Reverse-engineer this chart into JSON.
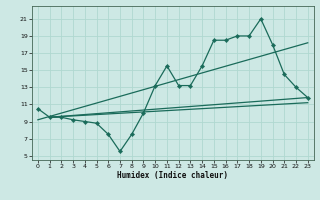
{
  "xlabel": "Humidex (Indice chaleur)",
  "bg_color": "#cde8e4",
  "grid_color": "#b0d8d0",
  "line_color": "#1a6b5a",
  "xlim": [
    -0.5,
    23.5
  ],
  "ylim": [
    4.5,
    22.5
  ],
  "yticks": [
    5,
    7,
    9,
    11,
    13,
    15,
    17,
    19,
    21
  ],
  "xticks": [
    0,
    1,
    2,
    3,
    4,
    5,
    6,
    7,
    8,
    9,
    10,
    11,
    12,
    13,
    14,
    15,
    16,
    17,
    18,
    19,
    20,
    21,
    22,
    23
  ],
  "line1_x": [
    0,
    1,
    2,
    3,
    4,
    5,
    6,
    7,
    8,
    9,
    10,
    11,
    12,
    13,
    14,
    15,
    16,
    17,
    18,
    19,
    20,
    21,
    22,
    23
  ],
  "line1_y": [
    10.5,
    9.5,
    9.5,
    9.2,
    9.0,
    8.8,
    7.5,
    5.5,
    7.5,
    10.0,
    13.2,
    15.5,
    13.2,
    13.2,
    15.5,
    18.5,
    18.5,
    19.0,
    19.0,
    21.0,
    18.0,
    14.5,
    13.0,
    11.8
  ],
  "line2_x": [
    0,
    23
  ],
  "line2_y": [
    9.2,
    18.2
  ],
  "line3_x": [
    1,
    23
  ],
  "line3_y": [
    9.5,
    11.8
  ],
  "line4_x": [
    1,
    23
  ],
  "line4_y": [
    9.5,
    11.2
  ]
}
